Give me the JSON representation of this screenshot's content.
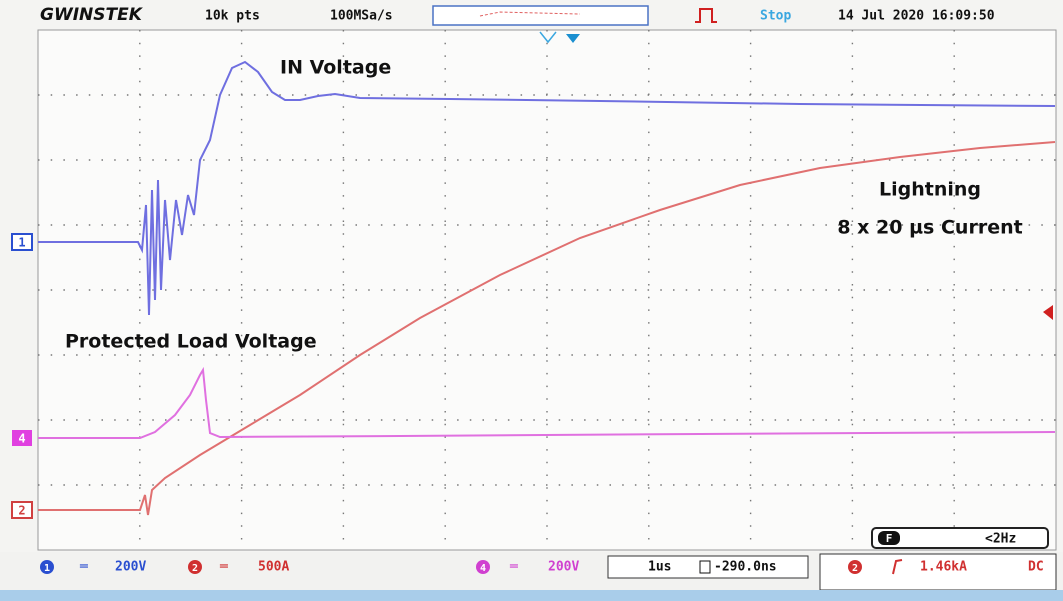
{
  "header": {
    "brand": "GWINSTEK",
    "record_length": "10k pts",
    "sample_rate": "100MSa/s",
    "status": "Stop",
    "datetime": "14 Jul 2020 16:09:50"
  },
  "annotations": {
    "in_voltage": "IN Voltage",
    "lightning_line1": "Lightning",
    "lightning_line2": "8 x 20 µs Current",
    "load_voltage": "Protected Load Voltage"
  },
  "channel_markers": {
    "ch1": "1",
    "ch4": "4",
    "ch2": "2"
  },
  "footer": {
    "ch1_num": "1",
    "ch1_scale": "200V",
    "ch2_num": "2",
    "ch2_scale": "500A",
    "ch4_num": "4",
    "ch4_scale": "200V",
    "timebase": "1us",
    "position": "-290.0ns",
    "trig_ch": "2",
    "trig_level": "1.46kA",
    "coupling": "DC",
    "filter_icon": "F",
    "filter": "<2Hz"
  }
}
